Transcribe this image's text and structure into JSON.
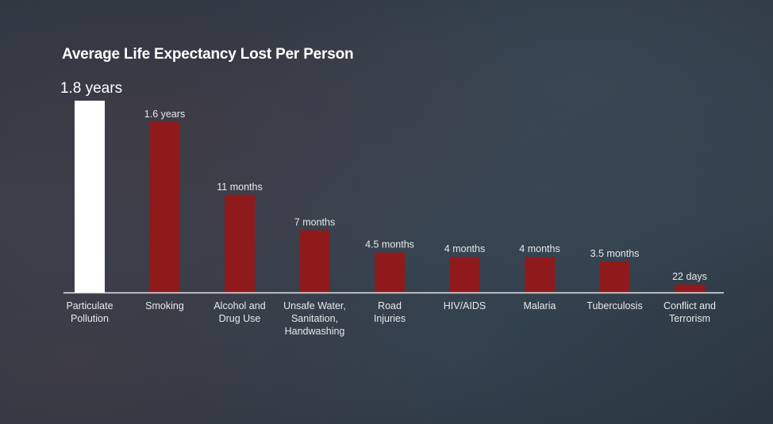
{
  "chart_data": {
    "type": "bar",
    "title": "Average Life Expectancy Lost Per Person",
    "xlabel": "",
    "ylabel": "",
    "unit": "months",
    "grid": false,
    "categories": [
      [
        "Particulate",
        "Pollution"
      ],
      [
        "Smoking"
      ],
      [
        "Alcohol and",
        "Drug Use"
      ],
      [
        "Unsafe Water,",
        "Sanitation,",
        "Handwashing"
      ],
      [
        "Road",
        "Injuries"
      ],
      [
        "HIV/AIDS"
      ],
      [
        "Malaria"
      ],
      [
        "Tuberculosis"
      ],
      [
        "Conflict and",
        "Terrorism"
      ]
    ],
    "values": [
      21.6,
      19.2,
      11,
      7,
      4.5,
      4,
      4,
      3.5,
      0.72
    ],
    "data_labels": [
      "1.8 years",
      "1.6 years",
      "11 months",
      "7 months",
      "4.5 months",
      "4 months",
      "4 months",
      "3.5 months",
      "22 days"
    ],
    "colors": {
      "highlight": "#ffffff",
      "bar": "#8e1a1c",
      "axis": "#e6e9ec"
    }
  }
}
